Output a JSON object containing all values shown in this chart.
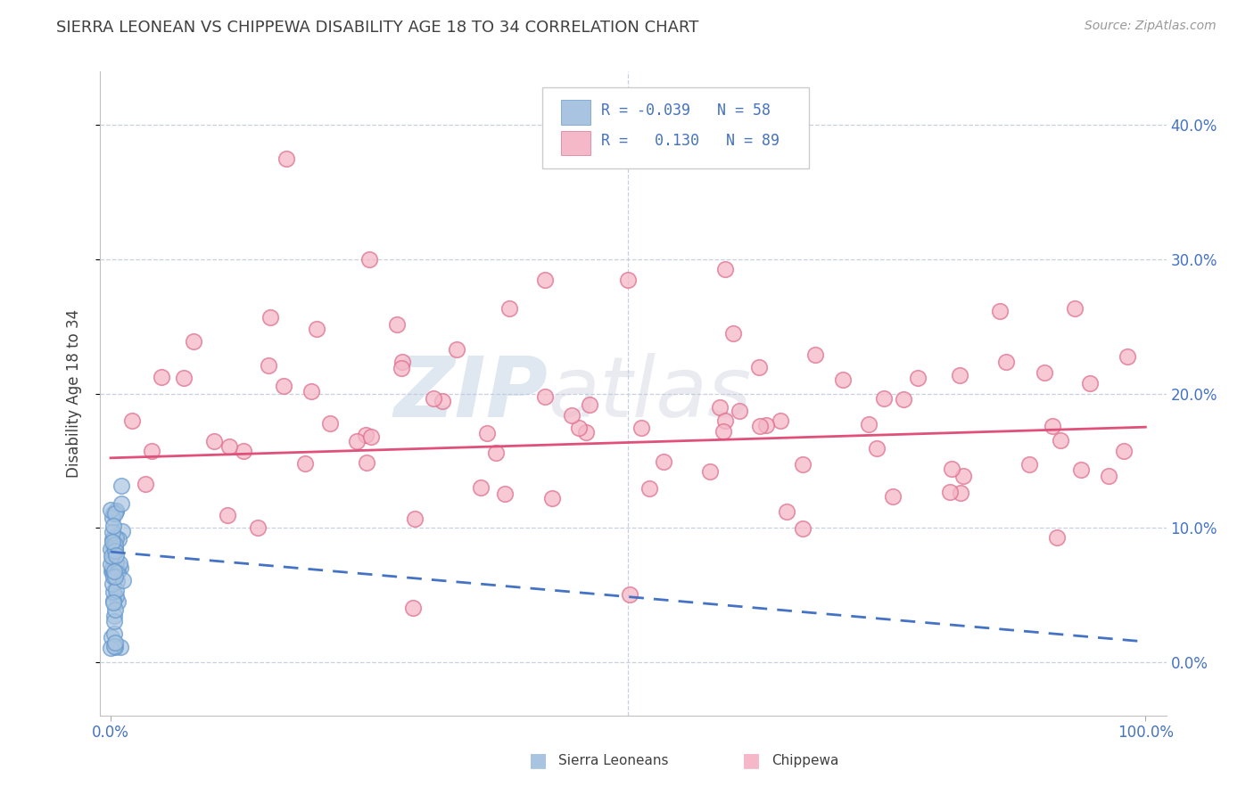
{
  "title": "SIERRA LEONEAN VS CHIPPEWA DISABILITY AGE 18 TO 34 CORRELATION CHART",
  "source": "Source: ZipAtlas.com",
  "ylabel": "Disability Age 18 to 34",
  "xlim": [
    -0.01,
    1.02
  ],
  "ylim": [
    -0.04,
    0.44
  ],
  "xticks": [
    0.0,
    1.0
  ],
  "xtick_labels": [
    "0.0%",
    "100.0%"
  ],
  "yticks": [
    0.0,
    0.1,
    0.2,
    0.3,
    0.4
  ],
  "ytick_labels_right": [
    "0.0%",
    "10.0%",
    "20.0%",
    "30.0%",
    "40.0%"
  ],
  "sierra_R": -0.039,
  "sierra_N": 58,
  "chippewa_R": 0.13,
  "chippewa_N": 89,
  "sierra_color": "#a8c4e0",
  "sierra_edge_color": "#6699cc",
  "chippewa_color": "#f4b8c8",
  "chippewa_edge_color": "#e07090",
  "sierra_line_color": "#4472c4",
  "chippewa_line_color": "#e0507a",
  "watermark_color": "#ccd8e8",
  "background_color": "#ffffff",
  "grid_color": "#c8d0e0",
  "tick_color": "#4472c4",
  "title_color": "#404040",
  "legend_bg": "#ffffff",
  "legend_border": "#cccccc",
  "sierra_trend_start_y": 0.082,
  "sierra_trend_end_y": 0.015,
  "chippewa_trend_start_y": 0.152,
  "chippewa_trend_end_y": 0.175
}
